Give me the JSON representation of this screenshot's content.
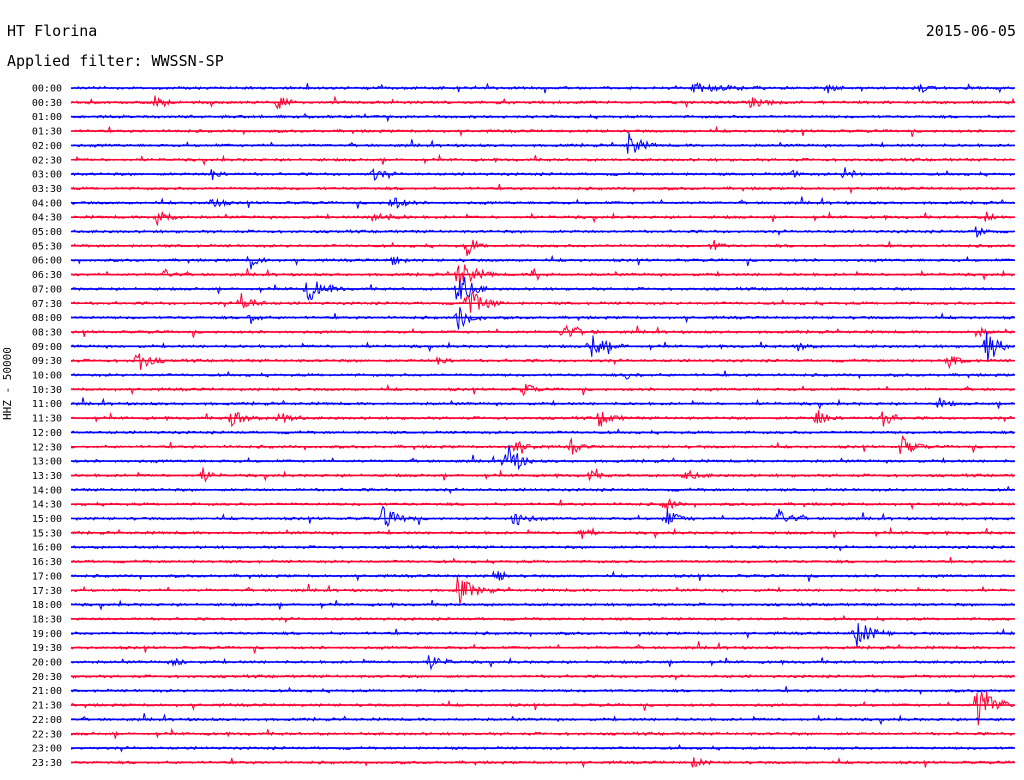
{
  "header": {
    "station": "HT Florina",
    "date": "2015-06-05",
    "filter_label": "Applied filter: WWSSN-SP"
  },
  "chart_data": {
    "type": "line",
    "title": "HT Florina",
    "date": "2015-06-05",
    "filter": "Applied filter: WWSSN-SP",
    "ylabel": "HHZ - 50000",
    "trace_rows": [
      "00:00",
      "00:30",
      "01:00",
      "01:30",
      "02:00",
      "02:30",
      "03:00",
      "03:30",
      "04:00",
      "04:30",
      "05:00",
      "05:30",
      "06:00",
      "06:30",
      "07:00",
      "07:30",
      "08:00",
      "08:30",
      "09:00",
      "09:30",
      "10:00",
      "10:30",
      "11:00",
      "11:30",
      "12:00",
      "12:30",
      "13:00",
      "13:30",
      "14:00",
      "14:30",
      "15:00",
      "15:30",
      "16:00",
      "16:30",
      "17:00",
      "17:30",
      "18:00",
      "18:30",
      "19:00",
      "19:30",
      "20:00",
      "20:30",
      "21:00",
      "21:30",
      "22:00",
      "22:30",
      "23:00",
      "23:30"
    ],
    "row_minutes": 30,
    "colors": [
      "#0000ff",
      "#ff0033"
    ],
    "events": [
      {
        "row": 0,
        "t": 0.66,
        "amp": 4,
        "len": 0.08
      },
      {
        "row": 0,
        "t": 0.8,
        "amp": 6,
        "len": 0.02
      },
      {
        "row": 0,
        "t": 0.9,
        "amp": 5,
        "len": 0.02
      },
      {
        "row": 1,
        "t": 0.09,
        "amp": 10,
        "len": 0.02
      },
      {
        "row": 1,
        "t": 0.22,
        "amp": 9,
        "len": 0.02
      },
      {
        "row": 1,
        "t": 0.72,
        "amp": 5,
        "len": 0.04
      },
      {
        "row": 4,
        "t": 0.59,
        "amp": 14,
        "len": 0.03
      },
      {
        "row": 6,
        "t": 0.15,
        "amp": 7,
        "len": 0.02
      },
      {
        "row": 6,
        "t": 0.32,
        "amp": 6,
        "len": 0.03
      },
      {
        "row": 6,
        "t": 0.76,
        "amp": 6,
        "len": 0.02
      },
      {
        "row": 6,
        "t": 0.82,
        "amp": 9,
        "len": 0.02
      },
      {
        "row": 8,
        "t": 0.15,
        "amp": 7,
        "len": 0.02
      },
      {
        "row": 8,
        "t": 0.34,
        "amp": 8,
        "len": 0.03
      },
      {
        "row": 9,
        "t": 0.09,
        "amp": 11,
        "len": 0.03
      },
      {
        "row": 9,
        "t": 0.32,
        "amp": 6,
        "len": 0.04
      },
      {
        "row": 9,
        "t": 0.97,
        "amp": 5,
        "len": 0.02
      },
      {
        "row": 10,
        "t": 0.96,
        "amp": 6,
        "len": 0.02
      },
      {
        "row": 11,
        "t": 0.42,
        "amp": 12,
        "len": 0.02
      },
      {
        "row": 11,
        "t": 0.68,
        "amp": 6,
        "len": 0.02
      },
      {
        "row": 12,
        "t": 0.19,
        "amp": 10,
        "len": 0.02
      },
      {
        "row": 12,
        "t": 0.34,
        "amp": 6,
        "len": 0.02
      },
      {
        "row": 13,
        "t": 0.1,
        "amp": 6,
        "len": 0.02
      },
      {
        "row": 13,
        "t": 0.41,
        "amp": 16,
        "len": 0.04
      },
      {
        "row": 13,
        "t": 0.49,
        "amp": 8,
        "len": 0.02
      },
      {
        "row": 14,
        "t": 0.25,
        "amp": 13,
        "len": 0.04
      },
      {
        "row": 14,
        "t": 0.41,
        "amp": 22,
        "len": 0.03
      },
      {
        "row": 15,
        "t": 0.18,
        "amp": 10,
        "len": 0.03
      },
      {
        "row": 15,
        "t": 0.42,
        "amp": 16,
        "len": 0.04
      },
      {
        "row": 16,
        "t": 0.19,
        "amp": 6,
        "len": 0.02
      },
      {
        "row": 16,
        "t": 0.41,
        "amp": 14,
        "len": 0.03
      },
      {
        "row": 17,
        "t": 0.52,
        "amp": 8,
        "len": 0.04
      },
      {
        "row": 17,
        "t": 0.96,
        "amp": 5,
        "len": 0.02
      },
      {
        "row": 18,
        "t": 0.55,
        "amp": 13,
        "len": 0.04
      },
      {
        "row": 18,
        "t": 0.77,
        "amp": 5,
        "len": 0.02
      },
      {
        "row": 18,
        "t": 0.97,
        "amp": 20,
        "len": 0.03
      },
      {
        "row": 19,
        "t": 0.07,
        "amp": 12,
        "len": 0.03
      },
      {
        "row": 19,
        "t": 0.39,
        "amp": 6,
        "len": 0.02
      },
      {
        "row": 19,
        "t": 0.93,
        "amp": 6,
        "len": 0.03
      },
      {
        "row": 20,
        "t": 0.59,
        "amp": 5,
        "len": 0.02
      },
      {
        "row": 21,
        "t": 0.48,
        "amp": 8,
        "len": 0.02
      },
      {
        "row": 22,
        "t": 0.92,
        "amp": 6,
        "len": 0.02
      },
      {
        "row": 23,
        "t": 0.17,
        "amp": 10,
        "len": 0.03
      },
      {
        "row": 23,
        "t": 0.22,
        "amp": 7,
        "len": 0.03
      },
      {
        "row": 23,
        "t": 0.56,
        "amp": 9,
        "len": 0.03
      },
      {
        "row": 23,
        "t": 0.79,
        "amp": 9,
        "len": 0.03
      },
      {
        "row": 23,
        "t": 0.86,
        "amp": 13,
        "len": 0.02
      },
      {
        "row": 25,
        "t": 0.47,
        "amp": 8,
        "len": 0.03
      },
      {
        "row": 25,
        "t": 0.53,
        "amp": 8,
        "len": 0.02
      },
      {
        "row": 25,
        "t": 0.88,
        "amp": 11,
        "len": 0.03
      },
      {
        "row": 26,
        "t": 0.46,
        "amp": 24,
        "len": 0.03
      },
      {
        "row": 27,
        "t": 0.14,
        "amp": 8,
        "len": 0.02
      },
      {
        "row": 27,
        "t": 0.55,
        "amp": 6,
        "len": 0.02
      },
      {
        "row": 27,
        "t": 0.65,
        "amp": 6,
        "len": 0.03
      },
      {
        "row": 29,
        "t": 0.63,
        "amp": 8,
        "len": 0.02
      },
      {
        "row": 30,
        "t": 0.33,
        "amp": 11,
        "len": 0.04
      },
      {
        "row": 30,
        "t": 0.47,
        "amp": 9,
        "len": 0.03
      },
      {
        "row": 30,
        "t": 0.63,
        "amp": 10,
        "len": 0.03
      },
      {
        "row": 30,
        "t": 0.75,
        "amp": 10,
        "len": 0.03
      },
      {
        "row": 31,
        "t": 0.54,
        "amp": 7,
        "len": 0.02
      },
      {
        "row": 34,
        "t": 0.45,
        "amp": 8,
        "len": 0.02
      },
      {
        "row": 35,
        "t": 0.41,
        "amp": 15,
        "len": 0.04
      },
      {
        "row": 38,
        "t": 0.83,
        "amp": 16,
        "len": 0.04
      },
      {
        "row": 40,
        "t": 0.38,
        "amp": 8,
        "len": 0.03
      },
      {
        "row": 40,
        "t": 0.11,
        "amp": 5,
        "len": 0.02
      },
      {
        "row": 43,
        "t": 0.96,
        "amp": 26,
        "len": 0.04
      },
      {
        "row": 47,
        "t": 0.66,
        "amp": 6,
        "len": 0.02
      }
    ]
  }
}
